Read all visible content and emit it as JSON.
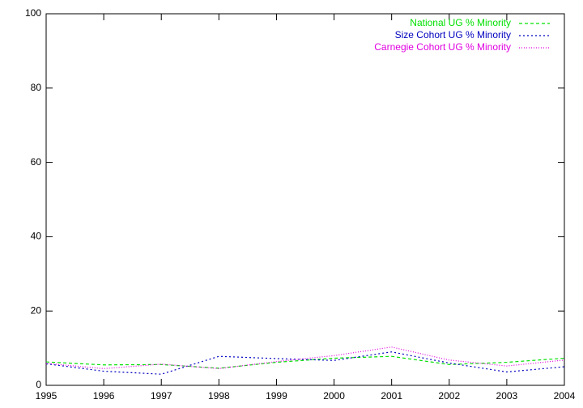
{
  "chart_data": {
    "type": "line",
    "x": [
      1995,
      1996,
      1997,
      1998,
      1999,
      2000,
      2001,
      2002,
      2003,
      2004
    ],
    "series": [
      {
        "name": "National UG % Minority",
        "color": "#00e000",
        "values": [
          6.3,
          5.5,
          5.6,
          4.6,
          6.2,
          7.3,
          7.8,
          5.6,
          6.2,
          7.3
        ]
      },
      {
        "name": "Size Cohort UG % Minority",
        "color": "#0000c0",
        "values": [
          5.8,
          3.8,
          3.0,
          7.8,
          7.2,
          6.7,
          9.0,
          6.0,
          3.6,
          5.0
        ]
      },
      {
        "name": "Carnegie Cohort UG % Minority",
        "color": "#e000e0",
        "values": [
          5.9,
          4.5,
          5.7,
          4.5,
          6.4,
          8.0,
          10.3,
          6.8,
          5.2,
          6.8
        ]
      }
    ],
    "xlim": [
      1995,
      2004
    ],
    "xticks": [
      1995,
      1996,
      1997,
      1998,
      1999,
      2000,
      2001,
      2002,
      2003,
      2004
    ],
    "ylim": [
      0,
      100
    ],
    "yticks": [
      0,
      20,
      40,
      60,
      80,
      100
    ],
    "legend": "top-right"
  }
}
